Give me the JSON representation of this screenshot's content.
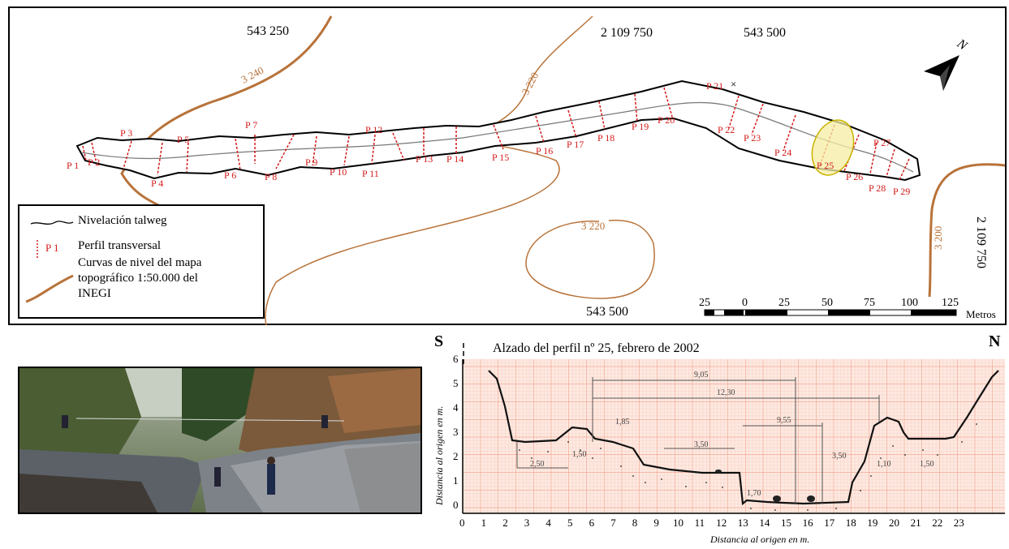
{
  "map": {
    "coords": {
      "x1": "543 250",
      "y_top": "2 109 750",
      "x2": "543 500",
      "x_bottom": "543 500",
      "y_right": "2 109 750"
    },
    "contours": [
      "3 240",
      "3 220",
      "3 220",
      "3 200"
    ],
    "profiles": [
      "P 1",
      "P 2",
      "P 3",
      "P 4",
      "P 5",
      "P 6",
      "P 7",
      "P 8",
      "P 9",
      "P 10",
      "P 11",
      "P 12",
      "P 13",
      "P 14",
      "P 15",
      "P 16",
      "P 17",
      "P 18",
      "P 19",
      "P 20",
      "P 21",
      "P 22",
      "P 23",
      "P 24",
      "P 25",
      "P 26",
      "P 27",
      "P 28",
      "P 29"
    ],
    "north_label": "N",
    "scale": {
      "ticks": [
        "25",
        "0",
        "25",
        "50",
        "75",
        "100",
        "125"
      ],
      "unit": "Metros"
    }
  },
  "legend": {
    "items": [
      {
        "label": "Nivelación talweg"
      },
      {
        "label": "P 1",
        "text": "Perfil transversal"
      },
      {
        "text_lines": [
          "Curvas de nivel del mapa",
          "topográfico 1:50.000 del",
          "INEGI"
        ]
      }
    ],
    "contour_sample": "3 240"
  },
  "profile_graph": {
    "title": "Alzado del perfil nº 25, febrero de 2002",
    "left_dir": "S",
    "right_dir": "N",
    "ylabel": "Distancia al origen en m.",
    "xlabel": "Distancia al origen en m.",
    "x_ticks": [
      "0",
      "1",
      "2",
      "3",
      "4",
      "5",
      "6",
      "7",
      "8",
      "9",
      "10",
      "11",
      "12",
      "13",
      "14",
      "15",
      "16",
      "17",
      "18",
      "19",
      "20",
      "21",
      "22",
      "23"
    ],
    "y_ticks": [
      "0",
      "1",
      "2",
      "3",
      "4",
      "5",
      "6"
    ],
    "annotations": [
      "9,05",
      "12,30",
      "1,85",
      "3,50",
      "9,55",
      "2,50",
      "1,50",
      "1,70",
      "3,50",
      "1,10",
      "1,50"
    ],
    "colors": {
      "grid": "#f3a08a",
      "grid_bg": "#fde9e1"
    }
  },
  "photo": {
    "alt": "field-photo-gully"
  }
}
